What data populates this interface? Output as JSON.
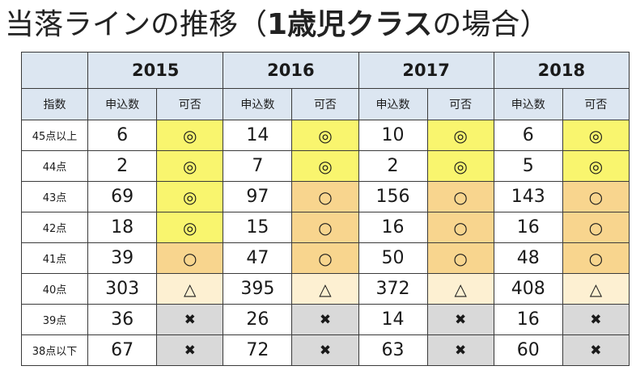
{
  "title": {
    "prefix": "当落ラインの推移（",
    "bold": "1歳児クラス",
    "suffix": "の場合）"
  },
  "colors": {
    "header_bg": "#dce6f1",
    "double_circle_bg": "#f9f56e",
    "circle_bg": "#f8d58e",
    "triangle_bg": "#fdf0d2",
    "cross_bg": "#d9d9d9",
    "plain_bg": "#ffffff",
    "border": "#3a3a3a"
  },
  "chart_data": {
    "type": "table",
    "row_header_label": "指数",
    "sub_headers": [
      "申込数",
      "可否"
    ],
    "years": [
      "2015",
      "2016",
      "2017",
      "2018"
    ],
    "rows": [
      {
        "label": "45点以上",
        "cells": [
          {
            "count": "6",
            "result": "◎",
            "kind": "double"
          },
          {
            "count": "14",
            "result": "◎",
            "kind": "double"
          },
          {
            "count": "10",
            "result": "◎",
            "kind": "double"
          },
          {
            "count": "6",
            "result": "◎",
            "kind": "double"
          }
        ]
      },
      {
        "label": "44点",
        "cells": [
          {
            "count": "2",
            "result": "◎",
            "kind": "double"
          },
          {
            "count": "7",
            "result": "◎",
            "kind": "double"
          },
          {
            "count": "2",
            "result": "◎",
            "kind": "double"
          },
          {
            "count": "5",
            "result": "◎",
            "kind": "double"
          }
        ]
      },
      {
        "label": "43点",
        "cells": [
          {
            "count": "69",
            "result": "◎",
            "kind": "double"
          },
          {
            "count": "97",
            "result": "○",
            "kind": "circle"
          },
          {
            "count": "156",
            "result": "○",
            "kind": "circle"
          },
          {
            "count": "143",
            "result": "○",
            "kind": "circle"
          }
        ]
      },
      {
        "label": "42点",
        "cells": [
          {
            "count": "18",
            "result": "◎",
            "kind": "double"
          },
          {
            "count": "15",
            "result": "○",
            "kind": "circle"
          },
          {
            "count": "16",
            "result": "○",
            "kind": "circle"
          },
          {
            "count": "16",
            "result": "○",
            "kind": "circle"
          }
        ]
      },
      {
        "label": "41点",
        "cells": [
          {
            "count": "39",
            "result": "○",
            "kind": "circle"
          },
          {
            "count": "47",
            "result": "○",
            "kind": "circle"
          },
          {
            "count": "50",
            "result": "○",
            "kind": "circle"
          },
          {
            "count": "48",
            "result": "○",
            "kind": "circle"
          }
        ]
      },
      {
        "label": "40点",
        "cells": [
          {
            "count": "303",
            "result": "△",
            "kind": "triangle"
          },
          {
            "count": "395",
            "result": "△",
            "kind": "triangle"
          },
          {
            "count": "372",
            "result": "△",
            "kind": "triangle"
          },
          {
            "count": "408",
            "result": "△",
            "kind": "triangle"
          }
        ]
      },
      {
        "label": "39点",
        "cells": [
          {
            "count": "36",
            "result": "✖",
            "kind": "cross"
          },
          {
            "count": "26",
            "result": "✖",
            "kind": "cross"
          },
          {
            "count": "14",
            "result": "✖",
            "kind": "cross"
          },
          {
            "count": "16",
            "result": "✖",
            "kind": "cross"
          }
        ]
      },
      {
        "label": "38点以下",
        "cells": [
          {
            "count": "67",
            "result": "✖",
            "kind": "cross"
          },
          {
            "count": "72",
            "result": "✖",
            "kind": "cross"
          },
          {
            "count": "63",
            "result": "✖",
            "kind": "cross"
          },
          {
            "count": "60",
            "result": "✖",
            "kind": "cross"
          }
        ]
      }
    ]
  }
}
